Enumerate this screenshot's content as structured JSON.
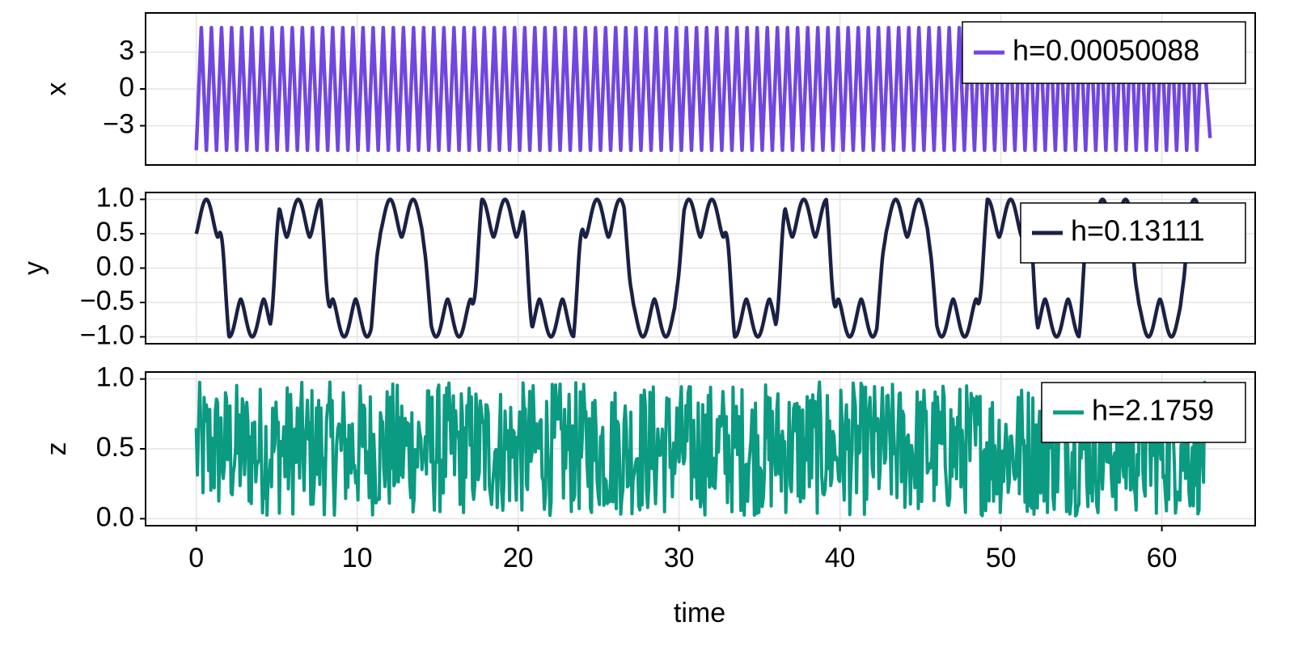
{
  "chart_data": {
    "type": "line",
    "xlabel": "time",
    "xlim": [
      -3.15,
      65.8
    ],
    "xticks": [
      0,
      10,
      20,
      30,
      40,
      50,
      60
    ],
    "grid": true,
    "legend_placement": "top-right",
    "panels": [
      {
        "ylabel": "x",
        "ylim": [
          -6.2,
          6.2
        ],
        "yticks": [
          3,
          0,
          -3
        ],
        "ytick_labels": [
          "3",
          "0",
          "−3"
        ],
        "series": [
          {
            "name": "h=0.00050088",
            "color": "#7146e0",
            "signal": "sawtooth oscillation between −5 and 5",
            "x_range": [
              0,
              62.8
            ],
            "amplitude": 5,
            "cycles": 100,
            "end_value": -4
          }
        ]
      },
      {
        "ylabel": "y",
        "ylim": [
          -1.1,
          1.1
        ],
        "yticks": [
          1.0,
          0.5,
          0.0,
          -0.5,
          -1.0
        ],
        "ytick_labels": [
          "1.0",
          "0.5",
          "0.0",
          "−0.5",
          "−1.0"
        ],
        "series": [
          {
            "name": "h=0.13111",
            "color": "#1a2144",
            "signal": "sin(t + 1.4) * |cos(2.4 t)| (wave with double peaks)",
            "x_range": [
              0,
              62.8
            ],
            "period": 6.28,
            "max": 1.0,
            "min": -1.0,
            "inner_extremum": 0.45
          }
        ]
      },
      {
        "ylabel": "z",
        "ylim": [
          -0.05,
          1.05
        ],
        "yticks": [
          1.0,
          0.5,
          0.0
        ],
        "ytick_labels": [
          "1.0",
          "0.5",
          "0.0"
        ],
        "series": [
          {
            "name": "h=2.1759",
            "color": "#0b9a82",
            "signal": "irregular noise-like oscillation in [0, 1]",
            "x_range": [
              0,
              62.8
            ],
            "min": 0.0,
            "max": 1.0,
            "mean": 0.5
          }
        ]
      }
    ]
  }
}
